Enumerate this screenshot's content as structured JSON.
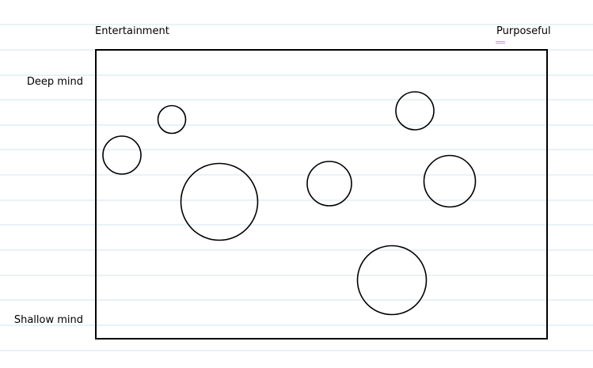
{
  "diagram": {
    "top_left_label": "Entertainment",
    "top_right_label": "Purposeful",
    "left_top_label": "Deep mind",
    "left_bottom_label": "Shallow mind",
    "line_color": "#cfe6f2",
    "stroke_color": "#000000",
    "marker_color": "#c9a0d8"
  }
}
